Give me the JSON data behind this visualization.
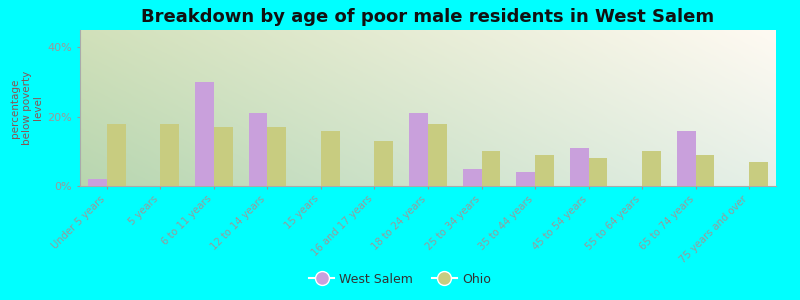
{
  "title": "Breakdown by age of poor male residents in West Salem",
  "ylabel": "percentage\nbelow poverty\nlevel",
  "categories": [
    "Under 5 years",
    "5 years",
    "6 to 11 years",
    "12 to 14 years",
    "15 years",
    "16 and 17 years",
    "18 to 24 years",
    "25 to 34 years",
    "35 to 44 years",
    "45 to 54 years",
    "55 to 64 years",
    "65 to 74 years",
    "75 years and over"
  ],
  "west_salem": [
    2,
    0,
    30,
    21,
    0,
    0,
    21,
    5,
    4,
    11,
    0,
    16,
    0
  ],
  "ohio": [
    18,
    18,
    17,
    17,
    16,
    13,
    18,
    10,
    9,
    8,
    10,
    9,
    7
  ],
  "west_salem_color": "#c9a0dc",
  "ohio_color": "#c8cc80",
  "outer_bg": "#00ffff",
  "ylim": [
    0,
    45
  ],
  "yticks": [
    0,
    20,
    40
  ],
  "ytick_labels": [
    "0%",
    "20%",
    "40%"
  ],
  "title_fontsize": 13,
  "legend_labels": [
    "West Salem",
    "Ohio"
  ],
  "bar_width": 0.35
}
